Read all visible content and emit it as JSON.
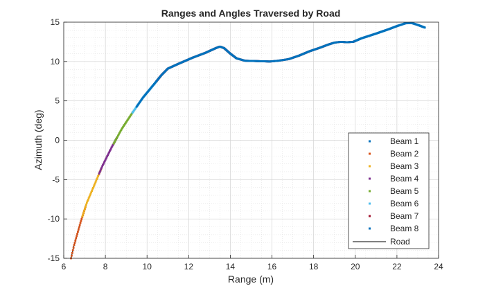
{
  "chart_data": {
    "type": "scatter",
    "title": "Ranges and Angles Traversed by Road",
    "xlabel": "Range (m)",
    "ylabel": "Azimuth (deg)",
    "xlim": [
      6,
      24
    ],
    "ylim": [
      -15,
      15
    ],
    "xticks": [
      6,
      8,
      10,
      12,
      14,
      16,
      18,
      20,
      22,
      24
    ],
    "yticks": [
      -15,
      -10,
      -5,
      0,
      5,
      10,
      15
    ],
    "grid": true,
    "minor_grid": true,
    "legend_position": "lower-right",
    "road": {
      "name": "Road",
      "color": "#000000",
      "points": [
        [
          6.35,
          -15.0
        ],
        [
          6.5,
          -13.3
        ],
        [
          6.8,
          -10.5
        ],
        [
          7.1,
          -8.0
        ],
        [
          7.5,
          -5.5
        ],
        [
          7.85,
          -3.3
        ],
        [
          8.3,
          -0.9
        ],
        [
          8.8,
          1.5
        ],
        [
          9.3,
          3.5
        ],
        [
          9.8,
          5.4
        ],
        [
          10.3,
          7.0
        ],
        [
          10.7,
          8.3
        ],
        [
          11.0,
          9.1
        ],
        [
          11.5,
          9.7
        ],
        [
          12.2,
          10.5
        ],
        [
          12.8,
          11.1
        ],
        [
          13.3,
          11.7
        ],
        [
          13.5,
          11.9
        ],
        [
          13.7,
          11.7
        ],
        [
          14.0,
          11.0
        ],
        [
          14.3,
          10.4
        ],
        [
          14.7,
          10.1
        ],
        [
          15.3,
          10.05
        ],
        [
          15.9,
          10.0
        ],
        [
          16.3,
          10.1
        ],
        [
          16.8,
          10.3
        ],
        [
          17.3,
          10.75
        ],
        [
          17.8,
          11.3
        ],
        [
          18.3,
          11.75
        ],
        [
          18.7,
          12.15
        ],
        [
          19.0,
          12.4
        ],
        [
          19.3,
          12.5
        ],
        [
          19.6,
          12.45
        ],
        [
          19.9,
          12.5
        ],
        [
          20.3,
          12.95
        ],
        [
          21.0,
          13.55
        ],
        [
          21.6,
          14.1
        ],
        [
          22.0,
          14.5
        ],
        [
          22.4,
          14.85
        ],
        [
          22.7,
          14.9
        ],
        [
          23.0,
          14.65
        ],
        [
          23.35,
          14.3
        ]
      ]
    },
    "series": [
      {
        "name": "Beam 1",
        "color": "#0072BD",
        "range": [
          19.95,
          23.35
        ]
      },
      {
        "name": "Beam 2",
        "color": "#D95319",
        "range": [
          6.35,
          7.05
        ]
      },
      {
        "name": "Beam 3",
        "color": "#EDB120",
        "range": [
          6.9,
          7.8
        ]
      },
      {
        "name": "Beam 4",
        "color": "#7E2F8E",
        "range": [
          7.7,
          8.55
        ]
      },
      {
        "name": "Beam 5",
        "color": "#77AC30",
        "range": [
          8.4,
          9.4
        ]
      },
      {
        "name": "Beam 6",
        "color": "#4DBEEE",
        "range": [
          9.3,
          10.6
        ]
      },
      {
        "name": "Beam 7",
        "color": "#A2142F",
        "range": [
          10.45,
          20.0
        ]
      },
      {
        "name": "Beam 8",
        "color": "#0072BD",
        "range": [
          9.5,
          23.35
        ]
      }
    ]
  }
}
